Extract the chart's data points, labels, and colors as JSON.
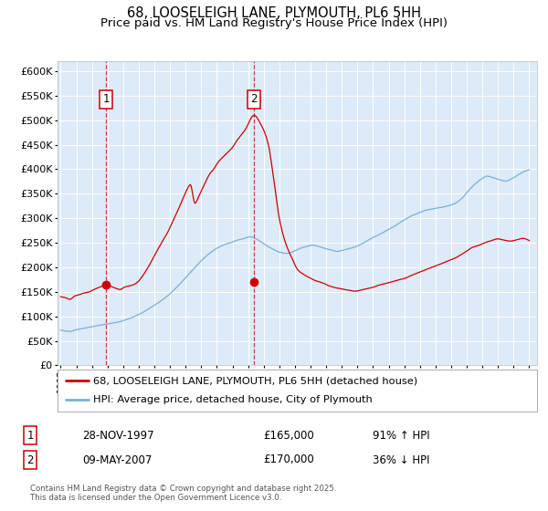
{
  "title": "68, LOOSELEIGH LANE, PLYMOUTH, PL6 5HH",
  "subtitle": "Price paid vs. HM Land Registry's House Price Index (HPI)",
  "ylim": [
    0,
    620000
  ],
  "yticks": [
    0,
    50000,
    100000,
    150000,
    200000,
    250000,
    300000,
    350000,
    400000,
    450000,
    500000,
    550000,
    600000
  ],
  "xlim_start": 1994.8,
  "xlim_end": 2025.5,
  "background_color": "#ddeaf7",
  "grid_color": "#ffffff",
  "red_color": "#cc0000",
  "blue_color": "#7ab0d4",
  "point1_x": 1997.91,
  "point1_y": 165000,
  "point2_x": 2007.36,
  "point2_y": 170000,
  "legend_red": "68, LOOSELEIGH LANE, PLYMOUTH, PL6 5HH (detached house)",
  "legend_blue": "HPI: Average price, detached house, City of Plymouth",
  "annotation1_date": "28-NOV-1997",
  "annotation1_price": "£165,000",
  "annotation1_hpi": "91% ↑ HPI",
  "annotation2_date": "09-MAY-2007",
  "annotation2_price": "£170,000",
  "annotation2_hpi": "36% ↓ HPI",
  "footer": "Contains HM Land Registry data © Crown copyright and database right 2025.\nThis data is licensed under the Open Government Licence v3.0.",
  "title_fontsize": 10.5,
  "subtitle_fontsize": 9.5,
  "red_x": [
    1995.0,
    1995.3,
    1995.6,
    1995.9,
    1996.2,
    1996.5,
    1996.8,
    1997.1,
    1997.5,
    1997.91,
    1998.2,
    1998.5,
    1998.8,
    1999.1,
    1999.4,
    1999.7,
    2000.0,
    2000.3,
    2000.6,
    2000.9,
    2001.2,
    2001.5,
    2001.8,
    2002.1,
    2002.4,
    2002.7,
    2003.0,
    2003.3,
    2003.6,
    2003.9,
    2004.2,
    2004.5,
    2004.8,
    2005.1,
    2005.4,
    2005.7,
    2006.0,
    2006.2,
    2006.5,
    2006.8,
    2007.0,
    2007.2,
    2007.36,
    2007.5,
    2007.7,
    2008.0,
    2008.3,
    2008.6,
    2009.0,
    2009.4,
    2009.8,
    2010.2,
    2010.6,
    2011.0,
    2011.4,
    2011.8,
    2012.2,
    2012.6,
    2013.0,
    2013.4,
    2013.8,
    2014.2,
    2014.6,
    2015.0,
    2015.4,
    2015.8,
    2016.2,
    2016.6,
    2017.0,
    2017.4,
    2017.8,
    2018.2,
    2018.6,
    2019.0,
    2019.4,
    2019.8,
    2020.2,
    2020.6,
    2021.0,
    2021.4,
    2021.8,
    2022.2,
    2022.6,
    2023.0,
    2023.4,
    2023.8,
    2024.2,
    2024.6,
    2025.0
  ],
  "red_y": [
    140000,
    138000,
    135000,
    142000,
    145000,
    148000,
    150000,
    155000,
    160000,
    165000,
    162000,
    158000,
    155000,
    160000,
    162000,
    165000,
    172000,
    185000,
    200000,
    218000,
    235000,
    252000,
    268000,
    288000,
    308000,
    330000,
    352000,
    368000,
    330000,
    348000,
    368000,
    388000,
    400000,
    415000,
    425000,
    435000,
    445000,
    455000,
    468000,
    480000,
    492000,
    505000,
    510000,
    508000,
    498000,
    480000,
    450000,
    390000,
    300000,
    250000,
    220000,
    195000,
    185000,
    178000,
    172000,
    168000,
    162000,
    158000,
    155000,
    152000,
    150000,
    152000,
    155000,
    158000,
    162000,
    165000,
    168000,
    172000,
    175000,
    180000,
    185000,
    190000,
    195000,
    200000,
    205000,
    210000,
    215000,
    222000,
    230000,
    238000,
    242000,
    248000,
    252000,
    255000,
    252000,
    250000,
    252000,
    255000,
    250000
  ],
  "blue_x": [
    1995.0,
    1995.3,
    1995.6,
    1995.9,
    1996.2,
    1996.5,
    1996.8,
    1997.1,
    1997.5,
    1997.9,
    1998.3,
    1998.7,
    1999.1,
    1999.5,
    1999.9,
    2000.3,
    2000.7,
    2001.1,
    2001.5,
    2001.9,
    2002.3,
    2002.7,
    2003.1,
    2003.5,
    2003.9,
    2004.3,
    2004.7,
    2005.1,
    2005.5,
    2005.9,
    2006.3,
    2006.7,
    2007.1,
    2007.5,
    2007.9,
    2008.3,
    2008.7,
    2009.1,
    2009.5,
    2009.9,
    2010.3,
    2010.7,
    2011.1,
    2011.5,
    2011.9,
    2012.3,
    2012.7,
    2013.1,
    2013.5,
    2013.9,
    2014.3,
    2014.7,
    2015.1,
    2015.5,
    2015.9,
    2016.3,
    2016.7,
    2017.1,
    2017.5,
    2017.9,
    2018.3,
    2018.7,
    2019.1,
    2019.5,
    2019.9,
    2020.3,
    2020.7,
    2021.1,
    2021.5,
    2021.9,
    2022.3,
    2022.7,
    2023.1,
    2023.5,
    2023.9,
    2024.3,
    2024.7,
    2025.0
  ],
  "blue_y": [
    72000,
    70000,
    69000,
    72000,
    74000,
    76000,
    78000,
    80000,
    82000,
    84000,
    86000,
    88000,
    92000,
    96000,
    102000,
    108000,
    116000,
    124000,
    133000,
    143000,
    155000,
    168000,
    182000,
    196000,
    210000,
    222000,
    232000,
    240000,
    246000,
    250000,
    255000,
    258000,
    262000,
    258000,
    250000,
    242000,
    235000,
    230000,
    228000,
    232000,
    238000,
    242000,
    245000,
    242000,
    238000,
    235000,
    232000,
    235000,
    238000,
    242000,
    248000,
    255000,
    262000,
    268000,
    275000,
    282000,
    290000,
    298000,
    305000,
    310000,
    315000,
    318000,
    320000,
    322000,
    325000,
    330000,
    340000,
    355000,
    368000,
    378000,
    385000,
    382000,
    378000,
    375000,
    380000,
    388000,
    395000,
    398000
  ]
}
